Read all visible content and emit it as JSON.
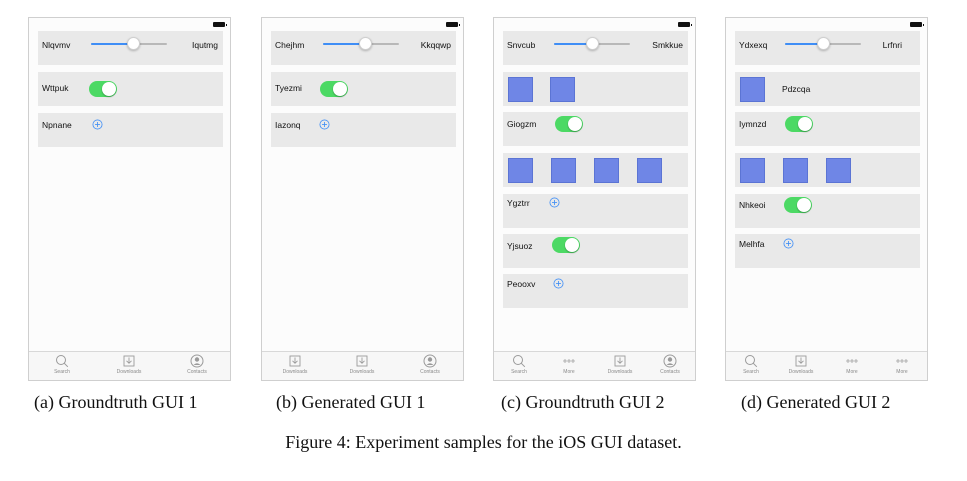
{
  "colors": {
    "accent": "#3f8ef6",
    "toggle_on": "#4cd964",
    "row_bg": "#e9e9e9",
    "square": "#6f86e6"
  },
  "panels": [
    {
      "caption": "(a) Groundtruth GUI 1",
      "slider": {
        "left": "Nlqvmv",
        "right": "Iqutmg",
        "value": 0.55
      },
      "toggle_row": {
        "label": "Wttpuk",
        "on": true
      },
      "plus_row": {
        "label": "Npnane"
      },
      "tabs": [
        {
          "label": "Search",
          "icon": "search-icon"
        },
        {
          "label": "Downloads",
          "icon": "downloads-icon"
        },
        {
          "label": "Contacts",
          "icon": "contacts-icon"
        }
      ]
    },
    {
      "caption": "(b) Generated GUI 1",
      "slider": {
        "left": "Chejhm",
        "right": "Kkqqwp",
        "value": 0.55
      },
      "toggle_row": {
        "label": "Tyezmi",
        "on": true
      },
      "plus_row": {
        "label": "Iazonq"
      },
      "tabs": [
        {
          "label": "Downloads",
          "icon": "downloads-icon"
        },
        {
          "label": "Downloads",
          "icon": "downloads-icon"
        },
        {
          "label": "Contacts",
          "icon": "contacts-icon"
        }
      ]
    },
    {
      "caption": "(c) Groundtruth GUI 2",
      "slider": {
        "left": "Snvcub",
        "right": "Smkkue",
        "value": 0.5
      },
      "square_row_1_count": 2,
      "toggle_row_1": {
        "label": "Giogzm",
        "on": true
      },
      "square_row_2_count": 4,
      "plus_row_1": {
        "label": "Ygztrr"
      },
      "toggle_row_2": {
        "label": "Yjsuoz",
        "on": true
      },
      "plus_row_2": {
        "label": "Peooxv"
      },
      "tabs": [
        {
          "label": "Search",
          "icon": "search-icon"
        },
        {
          "label": "More",
          "icon": "more-icon"
        },
        {
          "label": "Downloads",
          "icon": "downloads-icon"
        },
        {
          "label": "Contacts",
          "icon": "contacts-icon"
        }
      ]
    },
    {
      "caption": "(d) Generated GUI 2",
      "slider": {
        "left": "Ydxexq",
        "right": "Lrfnri",
        "value": 0.5
      },
      "image_row": {
        "label": "Pdzcqa"
      },
      "toggle_row_1": {
        "label": "Iymnzd",
        "on": true
      },
      "square_row_count": 3,
      "toggle_row_2": {
        "label": "Nhkeoi",
        "on": true
      },
      "plus_row": {
        "label": "Melhfa"
      },
      "tabs": [
        {
          "label": "Search",
          "icon": "search-icon"
        },
        {
          "label": "Downloads",
          "icon": "downloads-icon"
        },
        {
          "label": "More",
          "icon": "more-icon"
        },
        {
          "label": "More",
          "icon": "more-icon"
        }
      ]
    }
  ],
  "figure_caption": "Figure 4: Experiment samples for the iOS GUI dataset."
}
